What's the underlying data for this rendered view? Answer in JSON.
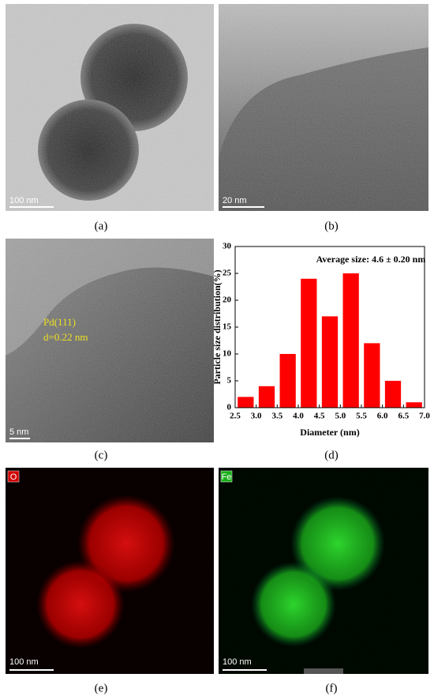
{
  "panels": [
    {
      "caption": "(a)",
      "scale_bar": "100 nm"
    },
    {
      "caption": "(b)",
      "scale_bar": "20 nm"
    },
    {
      "caption": "(c)",
      "scale_bar": "5 nm",
      "annotations": [
        "Pd(111)",
        "d=0.22 nm"
      ]
    },
    {
      "caption": "(d)"
    },
    {
      "caption": "(e)",
      "scale_bar": "100 nm",
      "element": "O"
    },
    {
      "caption": "(f)",
      "scale_bar": "100 nm",
      "element": "Fe"
    }
  ],
  "chart_data": {
    "type": "histogram",
    "annotation": "Average size: 4.6 ± 0.20 nm",
    "x_label": "Diameter (nm)",
    "y_label": "Particle size distribution(%)",
    "bins": [
      2.5,
      3.0,
      3.5,
      4.0,
      4.5,
      5.0,
      5.5,
      6.0,
      6.5,
      7.0
    ],
    "values": [
      2,
      4,
      10,
      24,
      17,
      25,
      12,
      5,
      1
    ],
    "color": "#ff0000",
    "xlim": [
      2.5,
      7.0
    ],
    "xticks": [
      2.5,
      {
        "value": 3,
        "label": "3.0"
      },
      3.5,
      {
        "value": 4,
        "label": "4.0"
      },
      4.5,
      {
        "value": 5,
        "label": "5.0"
      },
      5.5,
      {
        "value": 6,
        "label": "6.0"
      },
      6.5,
      {
        "value": 7,
        "label": "7.0"
      }
    ],
    "ylim": [
      0,
      30
    ],
    "yticks": [
      0,
      5,
      10,
      15,
      20,
      25,
      30
    ],
    "grid": false
  }
}
